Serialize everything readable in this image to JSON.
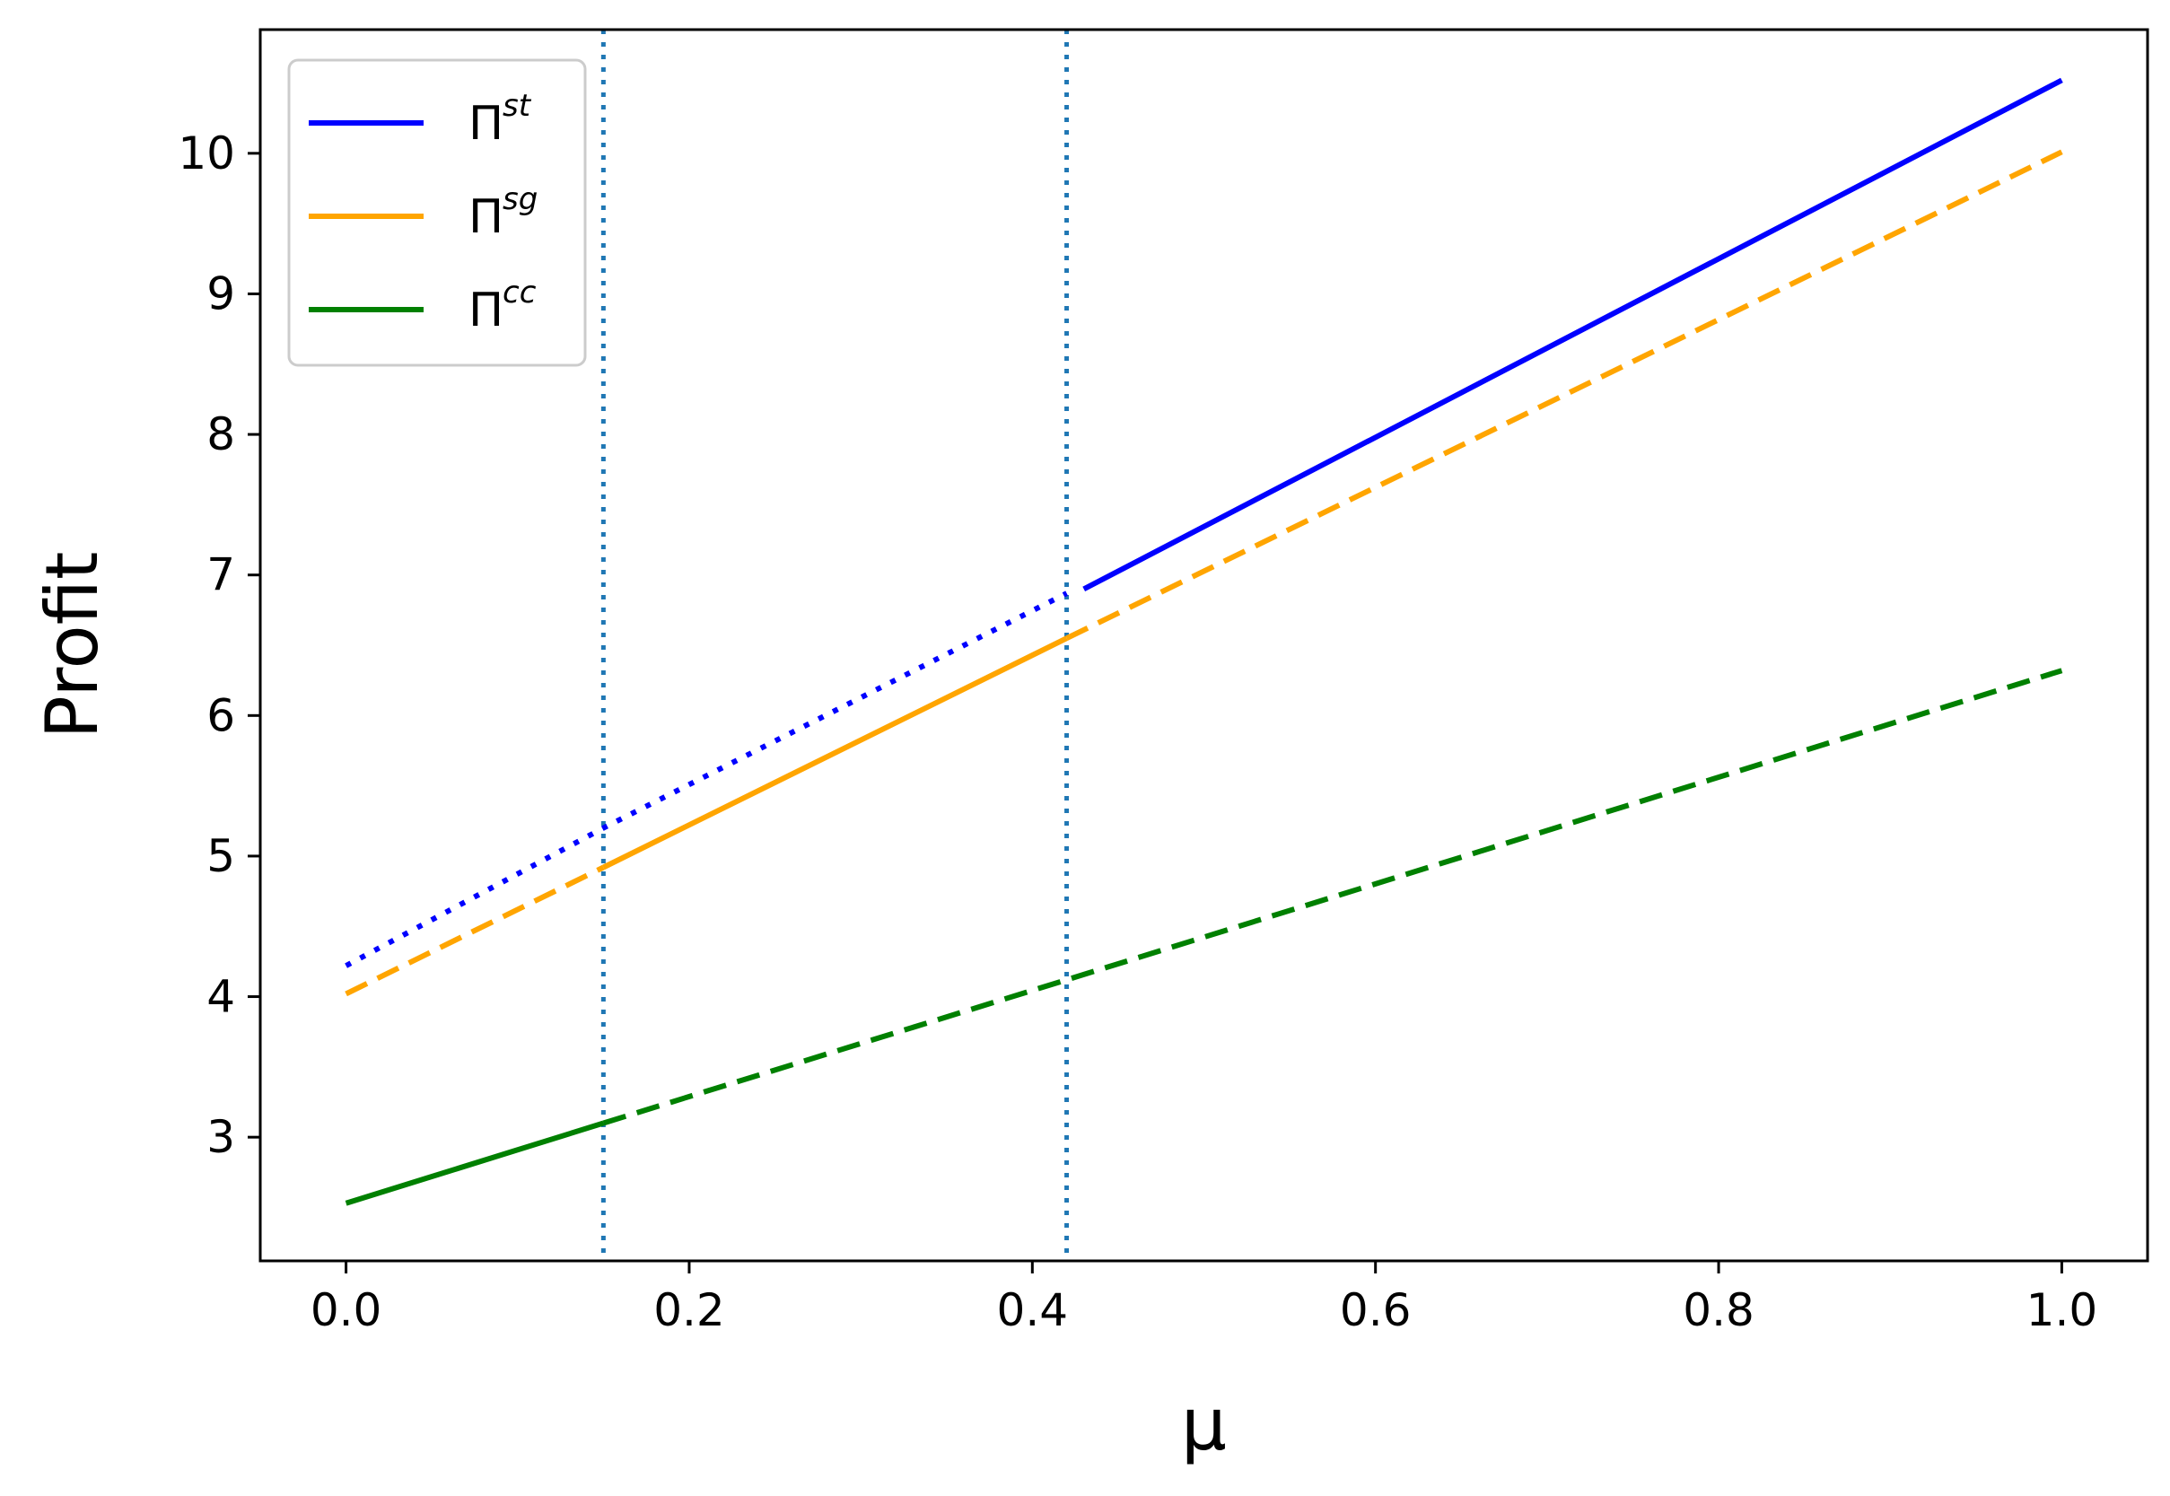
{
  "chart_data": {
    "type": "line",
    "xlabel": "μ",
    "ylabel": "Profit",
    "xlim": [
      -0.05,
      1.05
    ],
    "ylim": [
      2.12,
      10.88
    ],
    "x_ticks": [
      {
        "value": 0.0,
        "label": "0.0"
      },
      {
        "value": 0.2,
        "label": "0.2"
      },
      {
        "value": 0.4,
        "label": "0.4"
      },
      {
        "value": 0.6,
        "label": "0.6"
      },
      {
        "value": 0.8,
        "label": "0.8"
      },
      {
        "value": 1.0,
        "label": "1.0"
      }
    ],
    "y_ticks": [
      {
        "value": 3,
        "label": "3"
      },
      {
        "value": 4,
        "label": "4"
      },
      {
        "value": 5,
        "label": "5"
      },
      {
        "value": 6,
        "label": "6"
      },
      {
        "value": 7,
        "label": "7"
      },
      {
        "value": 8,
        "label": "8"
      },
      {
        "value": 9,
        "label": "9"
      },
      {
        "value": 10,
        "label": "10"
      }
    ],
    "grid": false,
    "legend_position": "top-left",
    "vertical_lines": [
      {
        "x": 0.15,
        "color": "#1f77b4",
        "style": "dotted"
      },
      {
        "x": 0.42,
        "color": "#1f77b4",
        "style": "dotted"
      }
    ],
    "series": [
      {
        "name": "Π",
        "superscript": "st",
        "color": "#0000ff",
        "segments": [
          {
            "style": "dotted",
            "x": [
              0.0,
              0.15,
              0.42
            ],
            "y": [
              4.22,
              5.2,
              6.87
            ]
          },
          {
            "style": "solid",
            "x": [
              0.43,
              1.0
            ],
            "y": [
              6.9,
              10.52
            ]
          }
        ]
      },
      {
        "name": "Π",
        "superscript": "sg",
        "color": "#ffa500",
        "segments": [
          {
            "style": "dashed",
            "x": [
              0.0,
              0.15
            ],
            "y": [
              4.02,
              4.92
            ]
          },
          {
            "style": "solid",
            "x": [
              0.15,
              0.42
            ],
            "y": [
              4.92,
              6.55
            ]
          },
          {
            "style": "dashed",
            "x": [
              0.42,
              1.0
            ],
            "y": [
              6.55,
              10.01
            ]
          }
        ]
      },
      {
        "name": "Π",
        "superscript": "cc",
        "color": "#008000",
        "segments": [
          {
            "style": "solid",
            "x": [
              0.0,
              0.05,
              0.1,
              0.15
            ],
            "y": [
              2.53,
              2.72,
              2.91,
              3.1
            ]
          },
          {
            "style": "dashed",
            "x": [
              0.15,
              0.42,
              1.0
            ],
            "y": [
              3.1,
              4.12,
              6.32
            ]
          }
        ]
      }
    ]
  }
}
